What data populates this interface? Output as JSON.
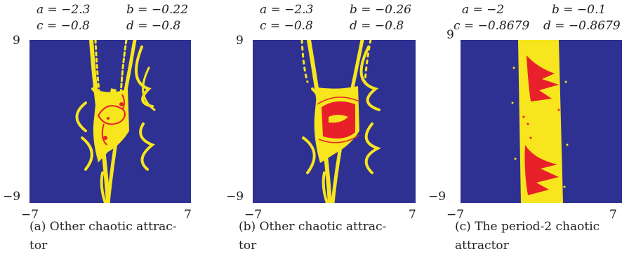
{
  "colors": {
    "background": "#2e3192",
    "basin": "#f7e51d",
    "attractor": "#e8202a"
  },
  "panels": [
    {
      "params": {
        "a": "a = −2.3",
        "b": "b = −0.22",
        "c": "c = −0.8",
        "d": "d = −0.8"
      },
      "ticks": {
        "y_top": "9",
        "y_bottom": "−9",
        "x_left": "−7",
        "x_right": "7"
      },
      "caption": "(a) Other chaotic attrac- tor"
    },
    {
      "params": {
        "a": "a = −2.3",
        "b": "b = −0.26",
        "c": "c = −0.8",
        "d": "d = −0.8"
      },
      "ticks": {
        "y_top": "9",
        "y_bottom": "−9",
        "x_left": "−7",
        "x_right": "7"
      },
      "caption": "(b) Other chaotic attrac- tor"
    },
    {
      "params": {
        "a": "a = −2",
        "b": "b = −0.1",
        "c": "c = −0.8679",
        "d": "d = −0.8679"
      },
      "ticks": {
        "y_top": "9",
        "y_bottom": "−9",
        "x_left": "−7",
        "x_right": "7"
      },
      "caption": "(c) The period-2 chaotic attractor"
    }
  ]
}
